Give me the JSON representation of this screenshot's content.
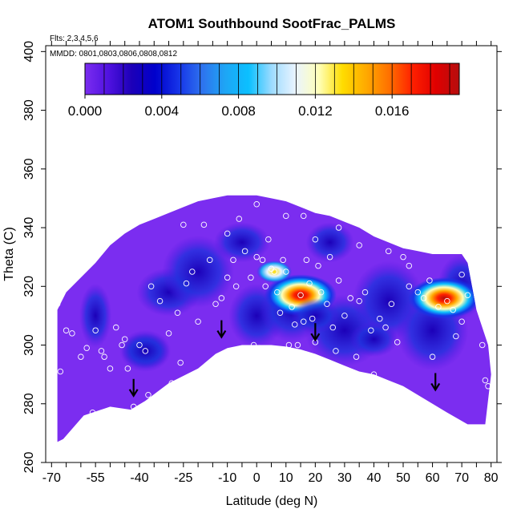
{
  "chart_data": {
    "type": "heatmap",
    "title": "ATOM1 Southbound SootFrac_PALMS",
    "subtitle_flights": "Flts: 2,3,4,5,6",
    "subtitle_dates": "MMDD: 0801,0803,0806,0808,0812",
    "xlabel": "Latitude (deg N)",
    "ylabel": "Theta (C)",
    "xlim": [
      -72,
      82
    ],
    "ylim": [
      260,
      402
    ],
    "x_ticks_labeled": [
      -70,
      -55,
      -40,
      -25,
      -10,
      0,
      10,
      20,
      30,
      40,
      50,
      60,
      70,
      80
    ],
    "x_tick_labels": [
      "-70",
      "-55",
      "-40",
      "-25",
      "-10",
      "0",
      "10",
      "20",
      "30",
      "40",
      "50",
      "60",
      "70",
      "80"
    ],
    "x_ticks_minor": [
      -65,
      -60,
      -50,
      -45,
      -35,
      -30,
      -20,
      -15,
      -5,
      5,
      15,
      25,
      35,
      45,
      55,
      65,
      75
    ],
    "y_ticks": [
      260,
      280,
      300,
      320,
      340,
      360,
      380,
      400
    ],
    "y_tick_labels": [
      "260",
      "280",
      "300",
      "320",
      "340",
      "360",
      "380",
      "400"
    ],
    "colorbar": {
      "range": [
        0,
        0.0195
      ],
      "tick_values": [
        0.0,
        0.004,
        0.008,
        0.012,
        0.016
      ],
      "tick_labels": [
        "0.000",
        "0.004",
        "0.008",
        "0.012",
        "0.016"
      ],
      "color_stops": [
        "#7b2df0",
        "#5012e0",
        "#1c00b8",
        "#0000cc",
        "#1634e8",
        "#2e72ee",
        "#1ea6f5",
        "#0bc0ff",
        "#9fdcff",
        "#eaf4ff",
        "#ffffb8",
        "#ffdd00",
        "#ffaa00",
        "#ff7000",
        "#ff2000",
        "#e00000",
        "#b50e0e"
      ]
    },
    "domain_lower_boundary": [
      [
        -68,
        267
      ],
      [
        -66,
        268
      ],
      [
        -59,
        276
      ],
      [
        -50,
        279
      ],
      [
        -43,
        278
      ],
      [
        -38,
        281
      ],
      [
        -30,
        287
      ],
      [
        -20,
        292
      ],
      [
        -14,
        297
      ],
      [
        -10,
        299
      ],
      [
        -5,
        300
      ],
      [
        0,
        300
      ],
      [
        5,
        300
      ],
      [
        10,
        299.5
      ],
      [
        15,
        298.5
      ],
      [
        20,
        297
      ],
      [
        25,
        295
      ],
      [
        30,
        293
      ],
      [
        35,
        291
      ],
      [
        40,
        290
      ],
      [
        45,
        288
      ],
      [
        50,
        286
      ],
      [
        55,
        283
      ],
      [
        60,
        280
      ],
      [
        65,
        277
      ],
      [
        72,
        273
      ]
    ],
    "domain_upper_boundary": [
      [
        -68,
        312
      ],
      [
        -65,
        318
      ],
      [
        -60,
        323
      ],
      [
        -55,
        328
      ],
      [
        -50,
        334
      ],
      [
        -45,
        338
      ],
      [
        -40,
        341
      ],
      [
        -35,
        343
      ],
      [
        -30,
        345
      ],
      [
        -25,
        347
      ],
      [
        -20,
        349
      ],
      [
        -15,
        350
      ],
      [
        -10,
        351
      ],
      [
        -5,
        351
      ],
      [
        0,
        351
      ],
      [
        5,
        350
      ],
      [
        10,
        349
      ],
      [
        15,
        347
      ],
      [
        20,
        345
      ],
      [
        25,
        344
      ],
      [
        30,
        342
      ],
      [
        35,
        340
      ],
      [
        40,
        337
      ],
      [
        45,
        335
      ],
      [
        50,
        333
      ],
      [
        55,
        332
      ],
      [
        60,
        331
      ],
      [
        65,
        331
      ],
      [
        70,
        331
      ],
      [
        72,
        328
      ],
      [
        75,
        312
      ],
      [
        79,
        300
      ],
      [
        80,
        290
      ],
      [
        78,
        273
      ]
    ],
    "hotspots": [
      {
        "lat": 15,
        "theta": 317,
        "value": 0.018
      },
      {
        "lat": 64,
        "theta": 316,
        "value": 0.017
      },
      {
        "lat": 6,
        "theta": 325,
        "value": 0.012
      },
      {
        "lat": 20,
        "theta": 310,
        "value": 0.004
      },
      {
        "lat": -38,
        "theta": 298,
        "value": 0.004
      },
      {
        "lat": 40,
        "theta": 302,
        "value": 0.004
      }
    ],
    "arrows": [
      {
        "lat": -42,
        "theta": 283
      },
      {
        "lat": -12,
        "theta": 303
      },
      {
        "lat": 20,
        "theta": 302
      },
      {
        "lat": 61,
        "theta": 285
      }
    ],
    "sample_points": [
      [
        -68,
        314
      ],
      [
        -67,
        291
      ],
      [
        -65,
        305
      ],
      [
        -63,
        304
      ],
      [
        -60,
        296
      ],
      [
        -58,
        299
      ],
      [
        -56,
        277
      ],
      [
        -55,
        305
      ],
      [
        -53,
        298
      ],
      [
        -52,
        296
      ],
      [
        -50,
        292
      ],
      [
        -48,
        306
      ],
      [
        -46,
        300
      ],
      [
        -45,
        302
      ],
      [
        -44,
        292
      ],
      [
        -42,
        279
      ],
      [
        -40,
        300
      ],
      [
        -38,
        298
      ],
      [
        -37,
        283
      ],
      [
        -36,
        320
      ],
      [
        -33,
        315
      ],
      [
        -30,
        304
      ],
      [
        -29,
        287
      ],
      [
        -27,
        311
      ],
      [
        -26,
        294
      ],
      [
        -24,
        321
      ],
      [
        -22,
        325
      ],
      [
        -20,
        308
      ],
      [
        -18,
        341
      ],
      [
        -16,
        329
      ],
      [
        -14,
        314
      ],
      [
        -12,
        316
      ],
      [
        -10,
        323
      ],
      [
        -8,
        329
      ],
      [
        -7,
        320
      ],
      [
        -6,
        343
      ],
      [
        -4,
        332
      ],
      [
        -2,
        323
      ],
      [
        -1,
        300
      ],
      [
        0,
        330
      ],
      [
        0,
        348
      ],
      [
        1,
        299
      ],
      [
        2,
        329
      ],
      [
        3,
        320
      ],
      [
        4,
        336
      ],
      [
        5,
        326
      ],
      [
        6,
        325
      ],
      [
        7,
        318
      ],
      [
        8,
        311
      ],
      [
        9,
        329
      ],
      [
        10,
        325
      ],
      [
        11,
        300
      ],
      [
        12,
        313
      ],
      [
        13,
        307
      ],
      [
        14,
        300
      ],
      [
        15,
        317
      ],
      [
        16,
        308
      ],
      [
        16,
        344
      ],
      [
        17,
        329
      ],
      [
        18,
        321
      ],
      [
        19,
        309
      ],
      [
        20,
        301
      ],
      [
        20,
        336
      ],
      [
        21,
        327
      ],
      [
        22,
        318
      ],
      [
        24,
        314
      ],
      [
        25,
        330
      ],
      [
        26,
        306
      ],
      [
        27,
        298
      ],
      [
        28,
        322
      ],
      [
        30,
        310
      ],
      [
        32,
        316
      ],
      [
        34,
        296
      ],
      [
        35,
        315
      ],
      [
        37,
        318
      ],
      [
        39,
        305
      ],
      [
        40,
        290
      ],
      [
        42,
        309
      ],
      [
        44,
        306
      ],
      [
        46,
        314
      ],
      [
        48,
        301
      ],
      [
        50,
        330
      ],
      [
        52,
        320
      ],
      [
        55,
        318
      ],
      [
        57,
        316
      ],
      [
        59,
        322
      ],
      [
        60,
        296
      ],
      [
        62,
        313
      ],
      [
        65,
        315
      ],
      [
        67,
        312
      ],
      [
        68,
        303
      ],
      [
        70,
        308
      ],
      [
        72,
        317
      ],
      [
        75,
        320
      ],
      [
        77,
        300
      ],
      [
        78,
        288
      ],
      [
        79,
        286
      ],
      [
        -25,
        341
      ],
      [
        -10,
        338
      ],
      [
        10,
        344
      ],
      [
        28,
        340
      ],
      [
        35,
        334
      ],
      [
        45,
        332
      ],
      [
        52,
        327
      ],
      [
        70,
        324
      ]
    ]
  }
}
